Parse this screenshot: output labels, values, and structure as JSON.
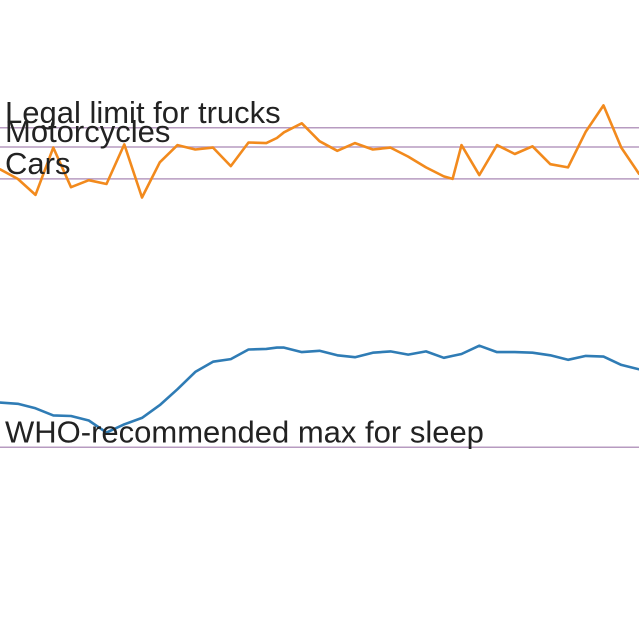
{
  "chart_data": {
    "type": "line",
    "title": "",
    "xlabel": "",
    "ylabel": "",
    "grid": false,
    "ylim": [
      0,
      100
    ],
    "reference_lines": [
      {
        "label": "Legal limit for trucks",
        "value": 80,
        "color": "#b79bc0"
      },
      {
        "label": "Motorcycles",
        "value": 77,
        "color": "#b79bc0"
      },
      {
        "label": "Cars",
        "value": 72,
        "color": "#b79bc0"
      },
      {
        "label": "WHO-recommended max for sleep",
        "value": 30,
        "color": "#b79bc0"
      }
    ],
    "x": [
      0,
      1,
      2,
      3,
      4,
      5,
      6,
      7,
      8,
      9,
      10,
      11,
      12,
      13,
      14,
      15,
      15.6,
      16,
      17,
      18,
      19,
      20,
      21,
      22,
      23,
      24,
      25,
      25.5,
      26,
      27,
      28,
      29,
      30,
      31,
      32,
      33,
      34,
      35,
      36
    ],
    "series": [
      {
        "color": "#f28a1d",
        "values": [
          73.5,
          72.0,
          69.5,
          76.9,
          70.7,
          71.8,
          71.2,
          77.4,
          69.1,
          74.6,
          77.3,
          76.6,
          76.9,
          74.0,
          77.7,
          77.6,
          78.4,
          79.3,
          80.7,
          77.9,
          76.4,
          77.6,
          76.6,
          76.9,
          75.5,
          73.8,
          72.4,
          72.0,
          77.3,
          72.6,
          77.3,
          75.9,
          77.1,
          74.3,
          73.8,
          79.4,
          83.5,
          76.9,
          72.8
        ]
      },
      {
        "color": "#2f7cb5",
        "values": [
          37.0,
          36.8,
          36.1,
          35.0,
          34.9,
          34.2,
          32.3,
          33.6,
          34.6,
          36.6,
          39.1,
          41.8,
          43.4,
          43.8,
          45.3,
          45.4,
          45.6,
          45.6,
          44.9,
          45.1,
          44.4,
          44.1,
          44.8,
          45.0,
          44.5,
          45.0,
          44.0,
          44.3,
          44.6,
          45.9,
          44.9,
          44.9,
          44.8,
          44.4,
          43.7,
          44.3,
          44.2,
          42.9,
          42.2
        ]
      }
    ]
  }
}
